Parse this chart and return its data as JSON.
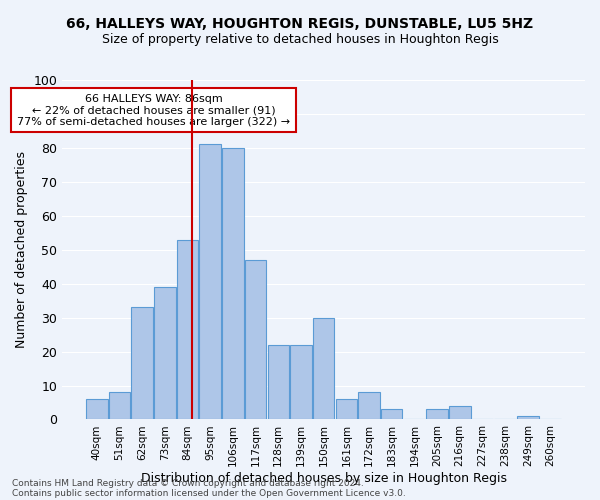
{
  "title1": "66, HALLEYS WAY, HOUGHTON REGIS, DUNSTABLE, LU5 5HZ",
  "title2": "Size of property relative to detached houses in Houghton Regis",
  "xlabel": "Distribution of detached houses by size in Houghton Regis",
  "ylabel": "Number of detached properties",
  "categories": [
    "40sqm",
    "51sqm",
    "62sqm",
    "73sqm",
    "84sqm",
    "95sqm",
    "106sqm",
    "117sqm",
    "128sqm",
    "139sqm",
    "150sqm",
    "161sqm",
    "172sqm",
    "183sqm",
    "194sqm",
    "205sqm",
    "216sqm",
    "227sqm",
    "238sqm",
    "249sqm",
    "260sqm"
  ],
  "values": [
    6,
    8,
    33,
    39,
    53,
    81,
    80,
    47,
    22,
    22,
    30,
    6,
    8,
    3,
    0,
    3,
    4,
    0,
    0,
    1,
    0
  ],
  "bar_color": "#aec6e8",
  "bar_edge_color": "#5b9bd5",
  "bg_color": "#eef3fb",
  "grid_color": "#ffffff",
  "vline_color": "#cc0000",
  "annotation_text": "66 HALLEYS WAY: 86sqm\n← 22% of detached houses are smaller (91)\n77% of semi-detached houses are larger (322) →",
  "annotation_box_color": "#cc0000",
  "footnote1": "Contains HM Land Registry data © Crown copyright and database right 2024.",
  "footnote2": "Contains public sector information licensed under the Open Government Licence v3.0.",
  "ylim": [
    0,
    100
  ],
  "title1_fontsize": 10,
  "title2_fontsize": 9,
  "ylabel_fontsize": 9,
  "xlabel_fontsize": 9,
  "annotation_fontsize": 8
}
